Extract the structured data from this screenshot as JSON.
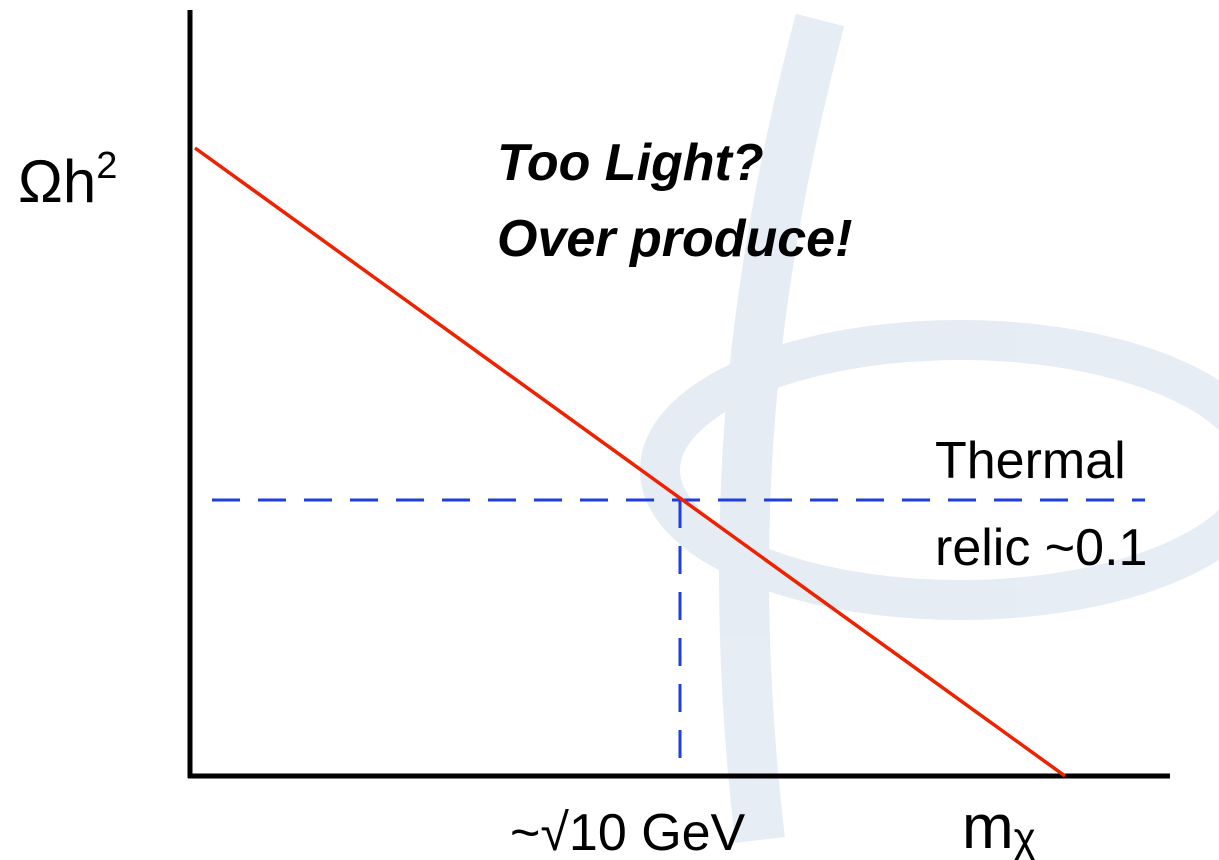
{
  "y_axis_label": {
    "base": "Ωh",
    "sup": "2"
  },
  "annotation": [
    "Too Light?",
    "Over produce!"
  ],
  "reference_label": [
    "Thermal",
    "relic ~0.1"
  ],
  "x_marker_label": "~√10 GeV",
  "x_axis_label": {
    "base": "m",
    "sub": "χ"
  }
}
